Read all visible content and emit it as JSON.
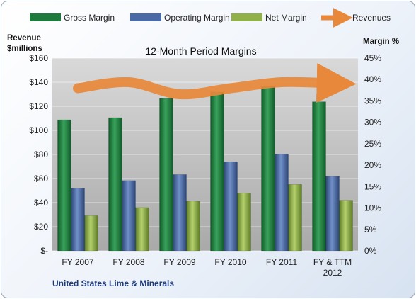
{
  "chart_data": {
    "type": "bar",
    "title": "12-Month Period Margins",
    "company": "United States Lime & Minerals",
    "left_axis_title": [
      "Revenue",
      "$millions"
    ],
    "right_axis_title": "Margin %",
    "categories": [
      [
        "FY 2007"
      ],
      [
        "FY 2008"
      ],
      [
        "FY 2009"
      ],
      [
        "FY 2010"
      ],
      [
        "FY 2011"
      ],
      [
        "FY & TTM",
        "2012"
      ]
    ],
    "left_ticks": [
      "$-",
      "$20",
      "$40",
      "$60",
      "$80",
      "$100",
      "$120",
      "$140",
      "$160"
    ],
    "right_ticks": [
      "0%",
      "5%",
      "10%",
      "15%",
      "20%",
      "25%",
      "30%",
      "35%",
      "40%",
      "45%"
    ],
    "ylim_left": [
      0,
      160
    ],
    "ylim_right": [
      0,
      45
    ],
    "series": [
      {
        "name": "Gross Margin",
        "axis": "right",
        "color": "#1f7a3e",
        "values": [
          30.6,
          31.1,
          35.6,
          37.1,
          38.4,
          34.8
        ]
      },
      {
        "name": "Operating Margin",
        "axis": "right",
        "color": "#4a6aa5",
        "values": [
          14.6,
          16.4,
          17.8,
          20.8,
          22.6,
          17.4
        ]
      },
      {
        "name": "Net Margin",
        "axis": "right",
        "color": "#8fb04a",
        "values": [
          8.2,
          10.1,
          11.6,
          13.5,
          15.5,
          11.8
        ]
      },
      {
        "name": "Revenues",
        "axis": "left",
        "type": "line",
        "color": "#e8883a",
        "values": [
          135,
          140,
          130,
          135,
          140,
          139
        ]
      }
    ],
    "grid": true,
    "legend_position": "top"
  }
}
